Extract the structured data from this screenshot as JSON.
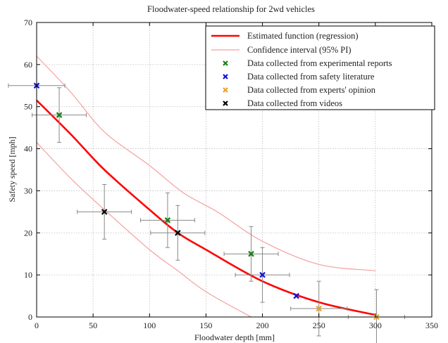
{
  "chart_data": {
    "type": "scatter",
    "title": "Floodwater-speed relationship for 2wd vehicles",
    "xlabel": "Floodwater depth [mm]",
    "ylabel": "Safety speed [mph]",
    "xlim": [
      0,
      350
    ],
    "ylim": [
      0,
      70
    ],
    "xticks": [
      0,
      50,
      100,
      150,
      200,
      250,
      300,
      350
    ],
    "yticks": [
      0,
      10,
      20,
      30,
      40,
      50,
      60,
      70
    ],
    "grid": true,
    "legend_position": "top-right",
    "colors": {
      "regression": "#ff0000",
      "interval": "#f5a0a0",
      "experimental": "#1a7f1a",
      "literature": "#1010e0",
      "experts": "#f0a020",
      "videos": "#000000",
      "errorbar": "#888888"
    },
    "regression": {
      "name": "Estimated function (regression)",
      "x": [
        0,
        30,
        60,
        100,
        125,
        150,
        200,
        250,
        300
      ],
      "y": [
        51.5,
        43.5,
        35,
        25.5,
        20,
        16,
        8.5,
        3.5,
        0.5
      ]
    },
    "interval_upper": {
      "name": "Confidence interval (95% PI)",
      "x": [
        0,
        30,
        60,
        100,
        130,
        160,
        200,
        250,
        300
      ],
      "y": [
        62,
        53.5,
        44,
        36,
        29.5,
        25,
        18,
        12.5,
        11
      ]
    },
    "interval_lower": {
      "x": [
        0,
        30,
        60,
        100,
        125,
        150,
        190
      ],
      "y": [
        41.5,
        33,
        25.5,
        16,
        11,
        6,
        0
      ]
    },
    "series": [
      {
        "name": "Data collected from experimental reports",
        "color_key": "experimental",
        "points": [
          {
            "x": 20,
            "y": 48,
            "xerr": 24,
            "yerr": 6.5
          },
          {
            "x": 116,
            "y": 23,
            "xerr": 24,
            "yerr": 6.5
          },
          {
            "x": 190,
            "y": 15,
            "xerr": 24,
            "yerr": 6.5
          }
        ]
      },
      {
        "name": "Data collected from safety literature",
        "color_key": "literature",
        "points": [
          {
            "x": 0,
            "y": 55,
            "xerr": 25,
            "yerr": 0
          },
          {
            "x": 200,
            "y": 10,
            "xerr": 24,
            "yerr": 6.5
          },
          {
            "x": 230,
            "y": 5,
            "xerr": 0,
            "yerr": 0
          }
        ]
      },
      {
        "name": "Data collected from experts' opinion",
        "color_key": "experts",
        "points": [
          {
            "x": 250,
            "y": 2,
            "xerr": 25,
            "yerr": 6.5
          },
          {
            "x": 301,
            "y": 0,
            "xerr": 25,
            "yerr": 6.5
          }
        ]
      },
      {
        "name": "Data collected from videos",
        "color_key": "videos",
        "points": [
          {
            "x": 60,
            "y": 25,
            "xerr": 24,
            "yerr": 6.5
          },
          {
            "x": 125,
            "y": 20,
            "xerr": 24,
            "yerr": 6.5
          }
        ]
      }
    ]
  }
}
